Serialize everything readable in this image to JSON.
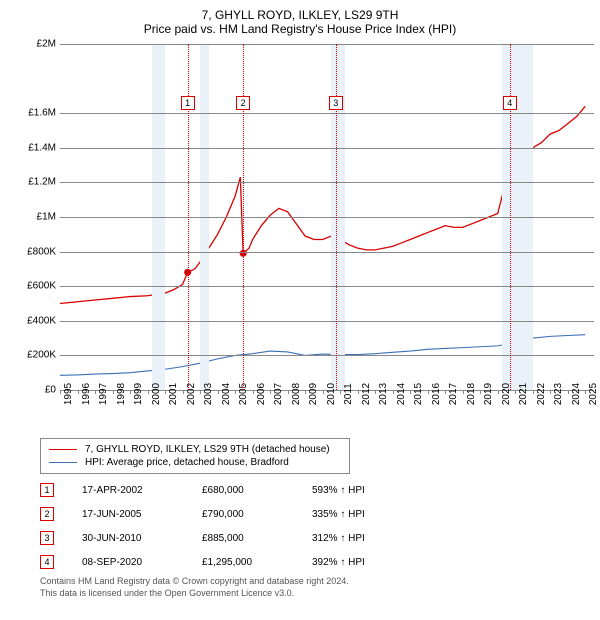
{
  "title_line1": "7, GHYLL ROYD, ILKLEY, LS29 9TH",
  "title_line2": "Price paid vs. HM Land Registry's House Price Index (HPI)",
  "chart": {
    "type": "line",
    "background_color": "#ffffff",
    "shade_color": "#eaf1f8",
    "grid_color": "#888888",
    "axis_fontsize": 10,
    "x_min": 1995,
    "x_max": 2025.5,
    "y_min": 0,
    "y_max": 2000000,
    "y_ticks": [
      {
        "v": 0,
        "label": "£0"
      },
      {
        "v": 200000,
        "label": "£200K"
      },
      {
        "v": 400000,
        "label": "£400K"
      },
      {
        "v": 600000,
        "label": "£600K"
      },
      {
        "v": 800000,
        "label": "£800K"
      },
      {
        "v": 1000000,
        "label": "£1M"
      },
      {
        "v": 1200000,
        "label": "£1.2M"
      },
      {
        "v": 1400000,
        "label": "£1.4M"
      },
      {
        "v": 1600000,
        "label": "£1.6M"
      },
      {
        "v": 2000000,
        "label": "£2M"
      }
    ],
    "x_ticks": [
      1995,
      1996,
      1997,
      1998,
      1999,
      2000,
      2001,
      2002,
      2003,
      2004,
      2005,
      2006,
      2007,
      2008,
      2009,
      2010,
      2011,
      2012,
      2013,
      2014,
      2015,
      2016,
      2017,
      2018,
      2019,
      2020,
      2021,
      2022,
      2023,
      2024,
      2025
    ],
    "shaded_ranges": [
      [
        2000.25,
        2001.0
      ],
      [
        2003.0,
        2003.5
      ],
      [
        2010.5,
        2011.25
      ],
      [
        2020.25,
        2022.0
      ]
    ],
    "series": [
      {
        "name": "property",
        "color": "#d90000",
        "width": 1.3,
        "points": [
          [
            1995,
            500000
          ],
          [
            1996,
            510000
          ],
          [
            1997,
            520000
          ],
          [
            1998,
            530000
          ],
          [
            1999,
            540000
          ],
          [
            2000,
            545000
          ],
          [
            2001,
            560000
          ],
          [
            2001.5,
            580000
          ],
          [
            2002,
            610000
          ],
          [
            2002.29,
            680000
          ],
          [
            2002.7,
            700000
          ],
          [
            2003,
            740000
          ],
          [
            2003.5,
            820000
          ],
          [
            2004,
            900000
          ],
          [
            2004.5,
            1000000
          ],
          [
            2005,
            1120000
          ],
          [
            2005.3,
            1230000
          ],
          [
            2005.46,
            790000
          ],
          [
            2005.8,
            820000
          ],
          [
            2006,
            870000
          ],
          [
            2006.5,
            950000
          ],
          [
            2007,
            1010000
          ],
          [
            2007.5,
            1050000
          ],
          [
            2008,
            1030000
          ],
          [
            2008.5,
            960000
          ],
          [
            2009,
            890000
          ],
          [
            2009.5,
            870000
          ],
          [
            2010,
            870000
          ],
          [
            2010.5,
            890000
          ],
          [
            2010.75,
            885000
          ],
          [
            2011,
            870000
          ],
          [
            2011.5,
            840000
          ],
          [
            2012,
            820000
          ],
          [
            2012.5,
            810000
          ],
          [
            2013,
            810000
          ],
          [
            2013.5,
            820000
          ],
          [
            2014,
            830000
          ],
          [
            2014.5,
            850000
          ],
          [
            2015,
            870000
          ],
          [
            2015.5,
            890000
          ],
          [
            2016,
            910000
          ],
          [
            2016.5,
            930000
          ],
          [
            2017,
            950000
          ],
          [
            2017.5,
            940000
          ],
          [
            2018,
            940000
          ],
          [
            2018.5,
            960000
          ],
          [
            2019,
            980000
          ],
          [
            2019.5,
            1000000
          ],
          [
            2020,
            1020000
          ],
          [
            2020.69,
            1295000
          ],
          [
            2021,
            1350000
          ],
          [
            2021.5,
            1390000
          ],
          [
            2022,
            1400000
          ],
          [
            2022.5,
            1430000
          ],
          [
            2023,
            1480000
          ],
          [
            2023.5,
            1500000
          ],
          [
            2024,
            1540000
          ],
          [
            2024.5,
            1580000
          ],
          [
            2025,
            1640000
          ]
        ]
      },
      {
        "name": "hpi",
        "color": "#3a6fb7",
        "width": 1.1,
        "points": [
          [
            1995,
            85000
          ],
          [
            1996,
            87000
          ],
          [
            1997,
            92000
          ],
          [
            1998,
            95000
          ],
          [
            1999,
            100000
          ],
          [
            2000,
            110000
          ],
          [
            2001,
            120000
          ],
          [
            2002,
            135000
          ],
          [
            2003,
            155000
          ],
          [
            2004,
            180000
          ],
          [
            2005,
            200000
          ],
          [
            2006,
            210000
          ],
          [
            2007,
            225000
          ],
          [
            2008,
            220000
          ],
          [
            2009,
            200000
          ],
          [
            2010,
            208000
          ],
          [
            2011,
            205000
          ],
          [
            2012,
            205000
          ],
          [
            2013,
            210000
          ],
          [
            2014,
            218000
          ],
          [
            2015,
            225000
          ],
          [
            2016,
            235000
          ],
          [
            2017,
            240000
          ],
          [
            2018,
            245000
          ],
          [
            2019,
            250000
          ],
          [
            2020,
            255000
          ],
          [
            2021,
            275000
          ],
          [
            2022,
            300000
          ],
          [
            2023,
            310000
          ],
          [
            2024,
            315000
          ],
          [
            2025,
            320000
          ]
        ]
      }
    ],
    "sale_markers": [
      {
        "n": "1",
        "x": 2002.29,
        "y": 680000,
        "color": "#d90000"
      },
      {
        "n": "2",
        "x": 2005.46,
        "y": 790000,
        "color": "#d90000"
      },
      {
        "n": "3",
        "x": 2010.75,
        "y": 885000,
        "color": "#d90000"
      },
      {
        "n": "4",
        "x": 2020.69,
        "y": 1295000,
        "color": "#d90000"
      }
    ],
    "marker_top_y": 1700000
  },
  "legend": {
    "items": [
      {
        "color": "#d90000",
        "label": "7, GHYLL ROYD, ILKLEY, LS29 9TH (detached house)"
      },
      {
        "color": "#3a6fb7",
        "label": "HPI: Average price, detached house, Bradford"
      }
    ]
  },
  "sales": [
    {
      "n": "1",
      "color": "#d90000",
      "date": "17-APR-2002",
      "price": "£680,000",
      "pct": "593% ↑ HPI"
    },
    {
      "n": "2",
      "color": "#d90000",
      "date": "17-JUN-2005",
      "price": "£790,000",
      "pct": "335% ↑ HPI"
    },
    {
      "n": "3",
      "color": "#d90000",
      "date": "30-JUN-2010",
      "price": "£885,000",
      "pct": "312% ↑ HPI"
    },
    {
      "n": "4",
      "color": "#d90000",
      "date": "08-SEP-2020",
      "price": "£1,295,000",
      "pct": "392% ↑ HPI"
    }
  ],
  "footnote_line1": "Contains HM Land Registry data © Crown copyright and database right 2024.",
  "footnote_line2": "This data is licensed under the Open Government Licence v3.0."
}
